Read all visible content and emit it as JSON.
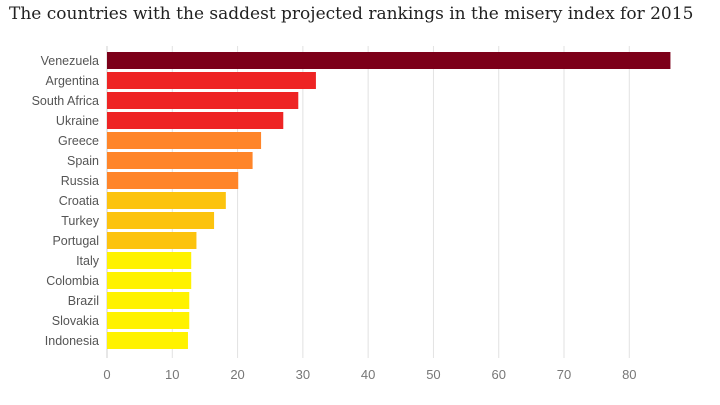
{
  "chart_data": {
    "type": "bar",
    "orientation": "horizontal",
    "title": "The countries with the saddest projected rankings in the misery index for 2015",
    "xlabel": "",
    "ylabel": "",
    "xlim": [
      0,
      87
    ],
    "xticks": [
      0,
      10,
      20,
      30,
      40,
      50,
      60,
      70,
      80
    ],
    "grid": true,
    "categories": [
      "Venezuela",
      "Argentina",
      "South Africa",
      "Ukraine",
      "Greece",
      "Spain",
      "Russia",
      "Croatia",
      "Turkey",
      "Portugal",
      "Italy",
      "Colombia",
      "Brazil",
      "Slovakia",
      "Indonesia"
    ],
    "values": [
      86.3,
      32.0,
      29.3,
      27.0,
      23.6,
      22.3,
      20.1,
      18.2,
      16.4,
      13.7,
      12.9,
      12.9,
      12.6,
      12.6,
      12.4
    ],
    "colors": [
      "#7c0019",
      "#ee2424",
      "#ee2424",
      "#ee2424",
      "#ff8529",
      "#ff8529",
      "#ff8529",
      "#fcc30e",
      "#fcc30e",
      "#fcc30e",
      "#fff200",
      "#fff200",
      "#fff200",
      "#fff200",
      "#fff200"
    ]
  }
}
